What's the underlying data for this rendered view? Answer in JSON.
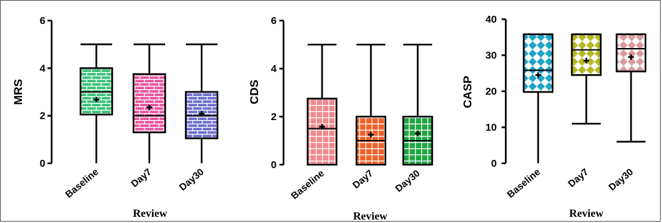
{
  "chart_data": [
    {
      "type": "box",
      "ylabel": "MRS",
      "xlabel": "Review",
      "ylim": [
        0,
        6
      ],
      "yticks": [
        0,
        2,
        4,
        6
      ],
      "categories": [
        "Baseline",
        "Day7",
        "Day30"
      ],
      "boxes": [
        {
          "min": 0,
          "q1": 2.05,
          "median": 3.0,
          "q3": 4.0,
          "max": 5,
          "mean": 2.68,
          "color": "#3cc37a",
          "pattern": "brick"
        },
        {
          "min": 0,
          "q1": 1.3,
          "median": 2.0,
          "q3": 3.75,
          "max": 5,
          "mean": 2.35,
          "color": "#e8559e",
          "pattern": "brick"
        },
        {
          "min": 0,
          "q1": 1.05,
          "median": 2.0,
          "q3": 3.0,
          "max": 5,
          "mean": 2.08,
          "color": "#6f6fcf",
          "pattern": "brick"
        }
      ]
    },
    {
      "type": "box",
      "ylabel": "CDS",
      "xlabel": "Review",
      "ylim": [
        0,
        6
      ],
      "yticks": [
        0,
        2,
        4,
        6
      ],
      "categories": [
        "Baseline",
        "Day7",
        "Day30"
      ],
      "boxes": [
        {
          "min": 0,
          "q1": 0,
          "median": 1.5,
          "q3": 2.75,
          "max": 5,
          "mean": 1.58,
          "color": "#ee8a8f",
          "pattern": "grid"
        },
        {
          "min": 0,
          "q1": 0,
          "median": 1.0,
          "q3": 2.0,
          "max": 5,
          "mean": 1.25,
          "color": "#f0612c",
          "pattern": "grid"
        },
        {
          "min": 0,
          "q1": 0,
          "median": 1.0,
          "q3": 2.0,
          "max": 5,
          "mean": 1.3,
          "color": "#22a545",
          "pattern": "grid"
        }
      ]
    },
    {
      "type": "box",
      "ylabel": "CASP",
      "xlabel": "Review",
      "ylim": [
        0,
        40
      ],
      "yticks": [
        0,
        10,
        20,
        30,
        40
      ],
      "categories": [
        "Baseline",
        "Day7",
        "Day30"
      ],
      "boxes": [
        {
          "min": 0,
          "q1": 19.8,
          "median": 25.8,
          "q3": 35.8,
          "max": 35.8,
          "mean": 24.5,
          "color": "#1fa5c8",
          "pattern": "diamond"
        },
        {
          "min": 11,
          "q1": 24.5,
          "median": 31.5,
          "q3": 35.8,
          "max": 35.8,
          "mean": 28.5,
          "color": "#b5b820",
          "pattern": "diamond"
        },
        {
          "min": 6,
          "q1": 25.5,
          "median": 31.8,
          "q3": 35.8,
          "max": 35.8,
          "mean": 29.5,
          "color": "#d99c9c",
          "pattern": "diamond"
        }
      ]
    }
  ]
}
